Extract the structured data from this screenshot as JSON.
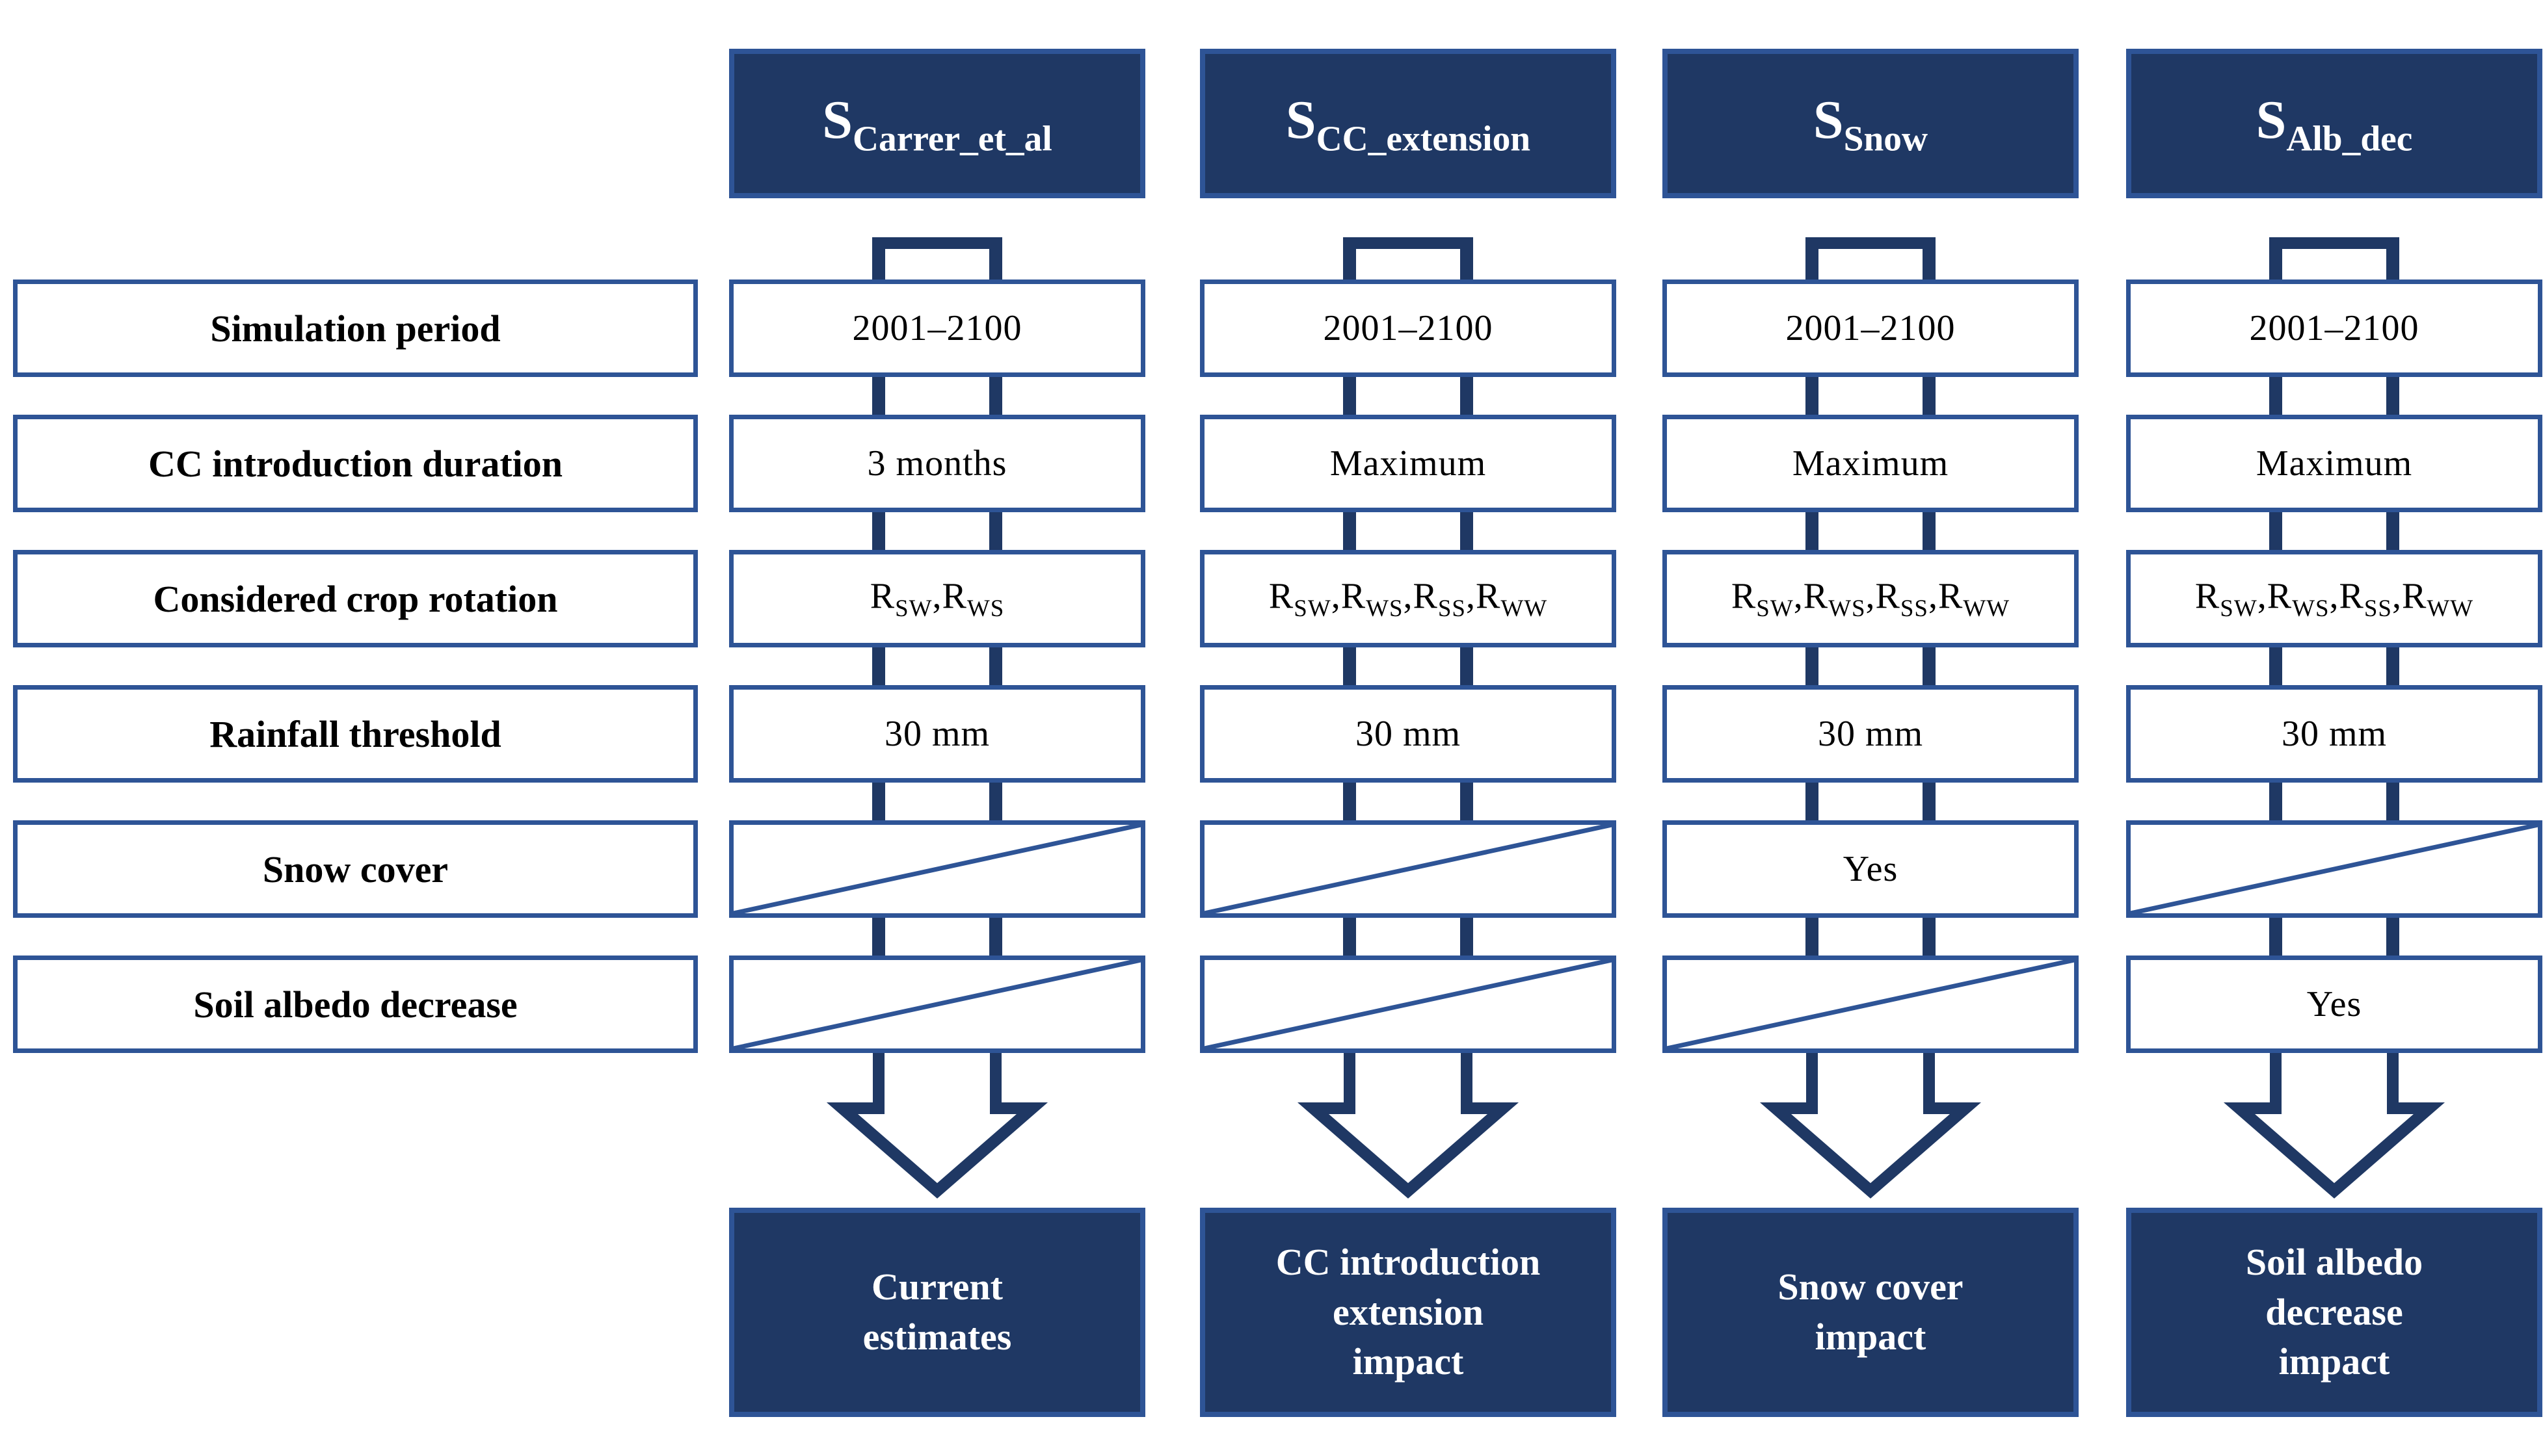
{
  "colors": {
    "navy": "#1f3864",
    "blue_border": "#2e5496",
    "white": "#ffffff",
    "black": "#000000"
  },
  "row_labels": [
    "Simulation period",
    "CC introduction duration",
    "Considered crop rotation",
    "Rainfall threshold",
    "Snow cover",
    "Soil albedo decrease"
  ],
  "columns": [
    {
      "header": "S~Carrer_et_al~",
      "values": [
        "2001–2100",
        "3 months",
        "R~SW~,R~WS~",
        "30 mm",
        null,
        null
      ],
      "na": [
        false,
        false,
        false,
        false,
        true,
        true
      ],
      "outcome": "Current\nestimates"
    },
    {
      "header": "S~CC_extension~",
      "values": [
        "2001–2100",
        "Maximum",
        "R~SW~,R~WS~,R~SS~,R~WW~",
        "30 mm",
        null,
        null
      ],
      "na": [
        false,
        false,
        false,
        false,
        true,
        true
      ],
      "outcome": "CC introduction\nextension\nimpact"
    },
    {
      "header": "S~Snow~",
      "values": [
        "2001–2100",
        "Maximum",
        "R~SW~,R~WS~,R~SS~,R~WW~",
        "30 mm",
        "Yes",
        null
      ],
      "na": [
        false,
        false,
        false,
        false,
        false,
        true
      ],
      "outcome": "Snow cover\nimpact"
    },
    {
      "header": "S~Alb_dec~",
      "values": [
        "2001–2100",
        "Maximum",
        "R~SW~,R~WS~,R~SS~,R~WW~",
        "30 mm",
        null,
        "Yes"
      ],
      "na": [
        false,
        false,
        false,
        false,
        true,
        false
      ],
      "outcome": "Soil albedo\ndecrease\nimpact"
    }
  ]
}
